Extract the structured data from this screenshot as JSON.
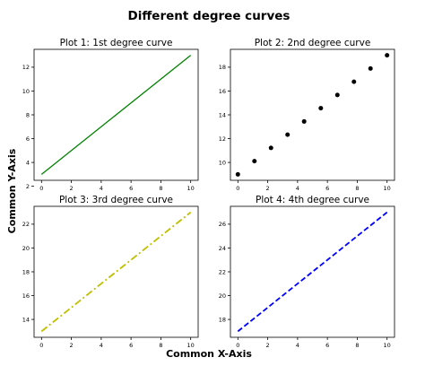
{
  "figure": {
    "title": "Different degree curves",
    "xlabel": "Common X-Axis",
    "ylabel": "Common Y-Axis"
  },
  "chart_data": [
    {
      "type": "line",
      "title": "Plot 1: 1st degree curve",
      "xlim": [
        -0.5,
        10.5
      ],
      "ylim": [
        2.5,
        13.5
      ],
      "xticks": [
        0,
        2,
        4,
        6,
        8,
        10
      ],
      "yticks": [
        2,
        4,
        6,
        8,
        10,
        12
      ],
      "series": [
        {
          "style": "solid",
          "color": "#008000",
          "marker": "none",
          "x": [
            0,
            10
          ],
          "y": [
            3,
            13
          ]
        }
      ]
    },
    {
      "type": "scatter",
      "title": "Plot 2: 2nd degree curve",
      "xlim": [
        -0.5,
        10.5
      ],
      "ylim": [
        8.5,
        19.5
      ],
      "xticks": [
        0,
        2,
        4,
        6,
        8,
        10
      ],
      "yticks": [
        10,
        12,
        14,
        16,
        18
      ],
      "series": [
        {
          "style": "none",
          "color": "#000000",
          "marker": "circle",
          "x": [
            0,
            1.11,
            2.22,
            3.33,
            4.44,
            5.56,
            6.67,
            7.78,
            8.89,
            10
          ],
          "y": [
            9,
            10.11,
            11.22,
            12.33,
            13.44,
            14.56,
            15.67,
            16.78,
            17.89,
            19
          ]
        }
      ]
    },
    {
      "type": "line",
      "title": "Plot 3: 3rd degree curve",
      "xlim": [
        -0.5,
        10.5
      ],
      "ylim": [
        12.5,
        23.5
      ],
      "xticks": [
        0,
        2,
        4,
        6,
        8,
        10
      ],
      "yticks": [
        14,
        16,
        18,
        20,
        22
      ],
      "series": [
        {
          "style": "dashdot",
          "color": "#bfbf00",
          "marker": "none",
          "x": [
            0,
            10
          ],
          "y": [
            13,
            23
          ]
        }
      ]
    },
    {
      "type": "line",
      "title": "Plot 4: 4th degree curve",
      "xlim": [
        -0.5,
        10.5
      ],
      "ylim": [
        16.5,
        27.5
      ],
      "xticks": [
        0,
        2,
        4,
        6,
        8,
        10
      ],
      "yticks": [
        18,
        20,
        22,
        24,
        26
      ],
      "series": [
        {
          "style": "dashed",
          "color": "#0000ff",
          "marker": "none",
          "x": [
            0,
            10
          ],
          "y": [
            17,
            27
          ]
        }
      ]
    }
  ]
}
